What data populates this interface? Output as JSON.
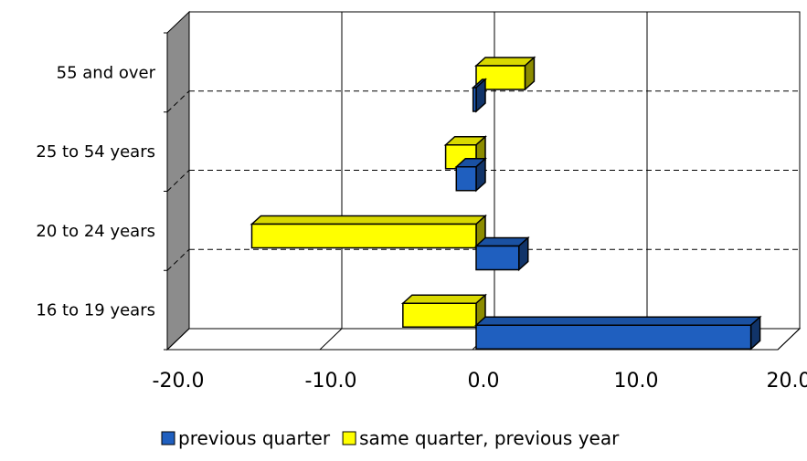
{
  "chart_data": {
    "type": "bar",
    "orientation": "horizontal",
    "categories": [
      "16 to 19 years",
      "20 to 24 years",
      "25 to 54 years",
      "55 and over"
    ],
    "series": [
      {
        "name": "previous quarter",
        "values": [
          18.0,
          2.8,
          -1.3,
          -0.2
        ],
        "color": "#1f5fbf"
      },
      {
        "name": "same quarter, previous year",
        "values": [
          -4.8,
          -14.7,
          -2.0,
          3.2
        ],
        "color": "#ffff00"
      }
    ],
    "x_ticks": [
      "-20.0",
      "-10.0",
      "0.0",
      "10.0",
      "20.0"
    ],
    "x_tick_values": [
      -20,
      -10,
      0,
      10,
      20
    ],
    "xlim": [
      -20,
      20
    ],
    "grid": true,
    "legend_position": "bottom",
    "three_d": true
  }
}
